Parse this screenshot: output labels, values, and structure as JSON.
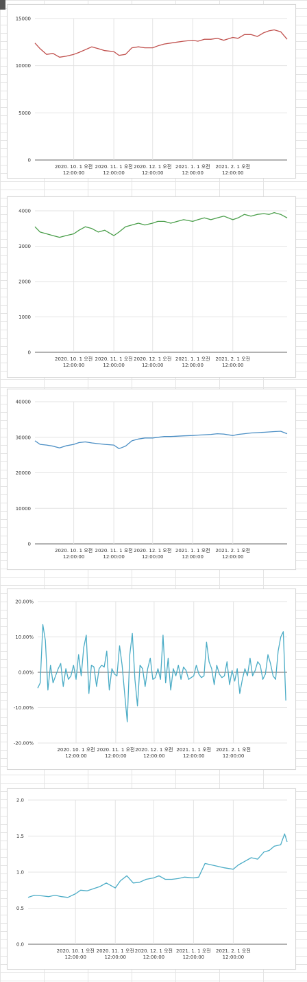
{
  "chart_data": [
    {
      "type": "line",
      "ylim": [
        0,
        15000
      ],
      "yticks": [
        0,
        5000,
        10000,
        15000
      ],
      "ytick_labels": [
        "0",
        "5000",
        "10000",
        "15000"
      ],
      "xlim": [
        "2020-09-01",
        "2021-03-15"
      ],
      "xticks": [
        "2020-10-01",
        "2020-11-01",
        "2020-12-01",
        "2021-01-01",
        "2021-02-01"
      ],
      "xtick_labels": [
        [
          "2020. 10. 1 오전",
          "12:00:00"
        ],
        [
          "2020. 11. 1 오전",
          "12:00:00"
        ],
        [
          "2020. 12. 1 오전",
          "12:00:00"
        ],
        [
          "2021. 1. 1 오전",
          "12:00:00"
        ],
        [
          "2021. 2. 1 오전",
          "12:00:00"
        ]
      ],
      "color": "#c0504d",
      "series": [
        {
          "x": [
            "2020-09-01",
            "2020-09-05",
            "2020-09-10",
            "2020-09-15",
            "2020-09-20",
            "2020-09-25",
            "2020-10-01",
            "2020-10-05",
            "2020-10-10",
            "2020-10-15",
            "2020-10-20",
            "2020-10-25",
            "2020-11-01",
            "2020-11-05",
            "2020-11-10",
            "2020-11-15",
            "2020-11-20",
            "2020-11-25",
            "2020-12-01",
            "2020-12-05",
            "2020-12-10",
            "2020-12-15",
            "2020-12-20",
            "2020-12-25",
            "2021-01-01",
            "2021-01-05",
            "2021-01-10",
            "2021-01-15",
            "2021-01-20",
            "2021-01-25",
            "2021-02-01",
            "2021-02-05",
            "2021-02-10",
            "2021-02-15",
            "2021-02-20",
            "2021-02-25",
            "2021-03-01",
            "2021-03-05",
            "2021-03-10",
            "2021-03-15"
          ],
          "y": [
            12400,
            11800,
            11200,
            11300,
            10900,
            11000,
            11200,
            11400,
            11700,
            12000,
            11800,
            11600,
            11500,
            11100,
            11200,
            11900,
            12000,
            11900,
            11900,
            12100,
            12300,
            12400,
            12500,
            12600,
            12700,
            12600,
            12800,
            12800,
            12900,
            12700,
            13000,
            12900,
            13300,
            13300,
            13100,
            13500,
            13700,
            13800,
            13600,
            12800
          ]
        }
      ]
    },
    {
      "type": "line",
      "ylim": [
        0,
        4000
      ],
      "yticks": [
        0,
        1000,
        2000,
        3000,
        4000
      ],
      "ytick_labels": [
        "0",
        "1000",
        "2000",
        "3000",
        "4000"
      ],
      "xlim": [
        "2020-09-01",
        "2021-03-15"
      ],
      "xticks": [
        "2020-10-01",
        "2020-11-01",
        "2020-12-01",
        "2021-01-01",
        "2021-02-01"
      ],
      "xtick_labels": [
        [
          "2020. 10. 1 오전",
          "12:00:00"
        ],
        [
          "2020. 11. 1 오전",
          "12:00:00"
        ],
        [
          "2020. 12. 1 오전",
          "12:00:00"
        ],
        [
          "2021. 1. 1 오전",
          "12:00:00"
        ],
        [
          "2021. 2. 1 오전",
          "12:00:00"
        ]
      ],
      "color": "#4a9e4a",
      "series": [
        {
          "x": [
            "2020-09-01",
            "2020-09-05",
            "2020-09-10",
            "2020-09-15",
            "2020-09-20",
            "2020-09-25",
            "2020-10-01",
            "2020-10-05",
            "2020-10-10",
            "2020-10-15",
            "2020-10-20",
            "2020-10-25",
            "2020-11-01",
            "2020-11-05",
            "2020-11-10",
            "2020-11-15",
            "2020-11-20",
            "2020-11-25",
            "2020-12-01",
            "2020-12-05",
            "2020-12-10",
            "2020-12-15",
            "2020-12-20",
            "2020-12-25",
            "2021-01-01",
            "2021-01-05",
            "2021-01-10",
            "2021-01-15",
            "2021-01-20",
            "2021-01-25",
            "2021-02-01",
            "2021-02-05",
            "2021-02-10",
            "2021-02-15",
            "2021-02-20",
            "2021-02-25",
            "2021-03-01",
            "2021-03-05",
            "2021-03-10",
            "2021-03-15"
          ],
          "y": [
            3550,
            3400,
            3350,
            3300,
            3250,
            3300,
            3350,
            3450,
            3550,
            3500,
            3400,
            3450,
            3300,
            3400,
            3550,
            3600,
            3650,
            3600,
            3650,
            3700,
            3700,
            3650,
            3700,
            3750,
            3700,
            3750,
            3800,
            3750,
            3800,
            3850,
            3750,
            3800,
            3900,
            3850,
            3900,
            3920,
            3900,
            3950,
            3900,
            3800
          ]
        }
      ]
    },
    {
      "type": "line",
      "ylim": [
        0,
        40000
      ],
      "yticks": [
        0,
        10000,
        20000,
        30000,
        40000
      ],
      "ytick_labels": [
        "0",
        "10000",
        "20000",
        "30000",
        "40000"
      ],
      "xlim": [
        "2020-09-01",
        "2021-03-15"
      ],
      "xticks": [
        "2020-10-01",
        "2020-11-01",
        "2020-12-01",
        "2021-01-01",
        "2021-02-01"
      ],
      "xtick_labels": [
        [
          "2020. 10. 1 오전",
          "12:00:00"
        ],
        [
          "2020. 11. 1 오전",
          "12:00:00"
        ],
        [
          "2020. 12. 1 오전",
          "12:00:00"
        ],
        [
          "2021. 1. 1 오전",
          "12:00:00"
        ],
        [
          "2021. 2. 1 오전",
          "12:00:00"
        ]
      ],
      "color": "#4a8ec4",
      "series": [
        {
          "x": [
            "2020-09-01",
            "2020-09-05",
            "2020-09-10",
            "2020-09-15",
            "2020-09-20",
            "2020-09-25",
            "2020-10-01",
            "2020-10-05",
            "2020-10-10",
            "2020-10-15",
            "2020-10-20",
            "2020-10-25",
            "2020-11-01",
            "2020-11-05",
            "2020-11-10",
            "2020-11-15",
            "2020-11-20",
            "2020-11-25",
            "2020-12-01",
            "2020-12-05",
            "2020-12-10",
            "2020-12-15",
            "2020-12-20",
            "2020-12-25",
            "2021-01-01",
            "2021-01-05",
            "2021-01-10",
            "2021-01-15",
            "2021-01-20",
            "2021-01-25",
            "2021-02-01",
            "2021-02-05",
            "2021-02-10",
            "2021-02-15",
            "2021-02-20",
            "2021-02-25",
            "2021-03-01",
            "2021-03-05",
            "2021-03-10",
            "2021-03-15"
          ],
          "y": [
            29000,
            28000,
            27800,
            27500,
            27000,
            27600,
            28000,
            28500,
            28700,
            28400,
            28200,
            28000,
            27800,
            26800,
            27500,
            29000,
            29500,
            29800,
            29800,
            30000,
            30200,
            30200,
            30300,
            30400,
            30500,
            30600,
            30700,
            30800,
            31000,
            30900,
            30500,
            30800,
            31000,
            31200,
            31300,
            31400,
            31500,
            31600,
            31700,
            31000
          ]
        }
      ]
    },
    {
      "type": "line",
      "ylim": [
        -0.2,
        0.2
      ],
      "yticks": [
        -0.2,
        -0.1,
        0,
        0.1,
        0.2
      ],
      "ytick_labels": [
        "-20.00%",
        "-10.00%",
        "0.00%",
        "10.00%",
        "20.00%"
      ],
      "xlim": [
        "2020-09-01",
        "2021-03-15"
      ],
      "xticks": [
        "2020-10-01",
        "2020-11-01",
        "2020-12-01",
        "2021-01-01",
        "2021-02-01"
      ],
      "xtick_labels": [
        [
          "2020. 10. 1 오전",
          "12:00:00"
        ],
        [
          "2020. 11. 1 오전",
          "12:00:00"
        ],
        [
          "2020. 12. 1 오전",
          "12:00:00"
        ],
        [
          "2021. 1. 1 오전",
          "12:00:00"
        ],
        [
          "2021. 2. 1 오전",
          "12:00:00"
        ]
      ],
      "color": "#4bacc6",
      "series": [
        {
          "x": [
            "2020-09-01",
            "2020-09-03",
            "2020-09-05",
            "2020-09-07",
            "2020-09-09",
            "2020-09-11",
            "2020-09-13",
            "2020-09-15",
            "2020-09-17",
            "2020-09-19",
            "2020-09-21",
            "2020-09-23",
            "2020-09-25",
            "2020-09-27",
            "2020-09-29",
            "2020-10-01",
            "2020-10-03",
            "2020-10-05",
            "2020-10-07",
            "2020-10-09",
            "2020-10-11",
            "2020-10-13",
            "2020-10-15",
            "2020-10-17",
            "2020-10-19",
            "2020-10-21",
            "2020-10-23",
            "2020-10-25",
            "2020-10-27",
            "2020-10-29",
            "2020-10-31",
            "2020-11-02",
            "2020-11-04",
            "2020-11-06",
            "2020-11-08",
            "2020-11-10",
            "2020-11-12",
            "2020-11-14",
            "2020-11-16",
            "2020-11-18",
            "2020-11-20",
            "2020-11-22",
            "2020-11-24",
            "2020-11-26",
            "2020-11-28",
            "2020-11-30",
            "2020-12-02",
            "2020-12-04",
            "2020-12-06",
            "2020-12-08",
            "2020-12-10",
            "2020-12-12",
            "2020-12-14",
            "2020-12-16",
            "2020-12-18",
            "2020-12-20",
            "2020-12-22",
            "2020-12-24",
            "2020-12-26",
            "2020-12-28",
            "2020-12-30",
            "2021-01-01",
            "2021-01-03",
            "2021-01-05",
            "2021-01-07",
            "2021-01-09",
            "2021-01-11",
            "2021-01-13",
            "2021-01-15",
            "2021-01-17",
            "2021-01-19",
            "2021-01-21",
            "2021-01-23",
            "2021-01-25",
            "2021-01-27",
            "2021-01-29",
            "2021-01-31",
            "2021-02-02",
            "2021-02-04",
            "2021-02-06",
            "2021-02-08",
            "2021-02-10",
            "2021-02-12",
            "2021-02-14",
            "2021-02-16",
            "2021-02-18",
            "2021-02-20",
            "2021-02-22",
            "2021-02-24",
            "2021-02-26",
            "2021-02-28",
            "2021-03-02",
            "2021-03-04",
            "2021-03-06",
            "2021-03-08",
            "2021-03-10",
            "2021-03-12",
            "2021-03-14"
          ],
          "y": [
            -0.045,
            -0.03,
            0.135,
            0.09,
            -0.05,
            0.02,
            -0.03,
            -0.01,
            0.01,
            0.025,
            -0.04,
            0.01,
            -0.02,
            -0.01,
            0.02,
            -0.02,
            0.05,
            -0.01,
            0.07,
            0.105,
            -0.06,
            0.02,
            0.015,
            -0.04,
            0.01,
            0.02,
            0.015,
            0.06,
            -0.05,
            0.01,
            -0.005,
            -0.01,
            0.075,
            0.02,
            -0.06,
            -0.14,
            0.05,
            0.11,
            -0.02,
            -0.095,
            0.02,
            0.01,
            -0.04,
            0.01,
            0.04,
            -0.02,
            -0.015,
            0.01,
            -0.02,
            0.105,
            -0.03,
            0.04,
            -0.05,
            0.01,
            -0.01,
            0.02,
            -0.02,
            0.015,
            0.005,
            -0.02,
            -0.015,
            -0.01,
            0.02,
            -0.005,
            -0.015,
            -0.01,
            0.085,
            0.03,
            0.01,
            -0.035,
            0.02,
            -0.005,
            -0.015,
            -0.01,
            0.03,
            -0.035,
            0.005,
            -0.025,
            0.01,
            -0.06,
            -0.02,
            0.01,
            -0.01,
            0.04,
            -0.01,
            0.005,
            0.03,
            0.02,
            -0.02,
            -0.005,
            0.05,
            0.025,
            -0.01,
            -0.02,
            0.06,
            0.1,
            0.115,
            -0.08
          ]
        }
      ]
    },
    {
      "type": "line",
      "ylim": [
        0,
        2
      ],
      "yticks": [
        0,
        0.5,
        1,
        1.5,
        2
      ],
      "ytick_labels": [
        "0.0",
        "0.5",
        "1.0",
        "1.5",
        "2.0"
      ],
      "xlim": [
        "2020-08-25",
        "2021-03-15"
      ],
      "xticks": [
        "2020-10-01",
        "2020-11-01",
        "2020-12-01",
        "2021-01-01",
        "2021-02-01"
      ],
      "xtick_labels": [
        [
          "2020. 10. 1 오전",
          "12:00:00"
        ],
        [
          "2020. 11. 1 오전",
          "12:00:00"
        ],
        [
          "2020. 12. 1 오전",
          "12:00:00"
        ],
        [
          "2021. 1. 1 오전",
          "12:00:00"
        ],
        [
          "2021. 2. 1 오전",
          "12:00:00"
        ]
      ],
      "color": "#4bacc6",
      "series": [
        {
          "x": [
            "2020-08-25",
            "2020-08-30",
            "2020-09-05",
            "2020-09-10",
            "2020-09-15",
            "2020-09-20",
            "2020-09-25",
            "2020-10-01",
            "2020-10-05",
            "2020-10-10",
            "2020-10-15",
            "2020-10-20",
            "2020-10-25",
            "2020-11-01",
            "2020-11-05",
            "2020-11-10",
            "2020-11-15",
            "2020-11-20",
            "2020-11-25",
            "2020-12-01",
            "2020-12-05",
            "2020-12-10",
            "2020-12-15",
            "2020-12-20",
            "2020-12-25",
            "2021-01-01",
            "2021-01-05",
            "2021-01-10",
            "2021-01-15",
            "2021-01-20",
            "2021-01-25",
            "2021-02-01",
            "2021-02-05",
            "2021-02-10",
            "2021-02-15",
            "2021-02-20",
            "2021-02-25",
            "2021-03-01",
            "2021-03-05",
            "2021-03-10",
            "2021-03-13",
            "2021-03-15"
          ],
          "y": [
            0.65,
            0.68,
            0.67,
            0.66,
            0.68,
            0.66,
            0.65,
            0.7,
            0.75,
            0.74,
            0.77,
            0.8,
            0.85,
            0.78,
            0.88,
            0.95,
            0.85,
            0.86,
            0.9,
            0.92,
            0.95,
            0.9,
            0.9,
            0.91,
            0.93,
            0.92,
            0.93,
            1.12,
            1.1,
            1.08,
            1.06,
            1.04,
            1.1,
            1.15,
            1.2,
            1.18,
            1.28,
            1.3,
            1.36,
            1.38,
            1.53,
            1.42
          ]
        }
      ]
    }
  ]
}
